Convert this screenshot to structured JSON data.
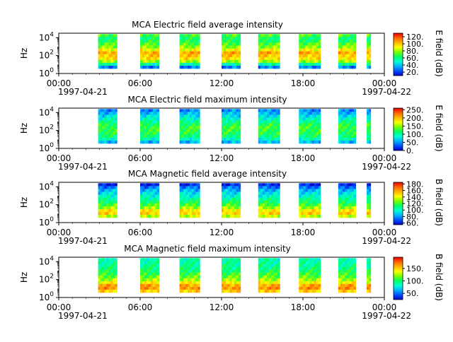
{
  "figure": {
    "background": "#ffffff",
    "colormap": [
      "#0000c8",
      "#0050ff",
      "#00b4ff",
      "#00ffd2",
      "#00ff64",
      "#78ff00",
      "#ffff00",
      "#ffb400",
      "#ff6400",
      "#e60000"
    ],
    "x_axis": {
      "ticks": [
        "00:00",
        "06:00",
        "12:00",
        "18:00",
        "00:00"
      ],
      "tick_hours": [
        0,
        6,
        12,
        18,
        24
      ],
      "start_date": "1997-04-21",
      "end_date": "1997-04-22"
    }
  },
  "chart_data": [
    {
      "type": "heatmap",
      "title": "MCA  Electric field average intensity",
      "ylabel": "Hz",
      "y_ticks": [
        "10^0",
        "10^2",
        "10^4"
      ],
      "colorbar_label": "E field (dB)",
      "colorbar_ticks": [
        20,
        40,
        60,
        80,
        100,
        120
      ],
      "colorbar_range": [
        10,
        130
      ],
      "x_range_hours": [
        0,
        24
      ],
      "y_range_log10": [
        0,
        4.5
      ],
      "segments_hours": [
        [
          2.9,
          4.3
        ],
        [
          6.0,
          7.4
        ],
        [
          8.9,
          10.4
        ],
        [
          12.0,
          13.4
        ],
        [
          14.7,
          16.3
        ],
        [
          17.7,
          19.3
        ],
        [
          20.6,
          21.9
        ],
        [
          22.7,
          23.0
        ]
      ],
      "profile_db": [
        30,
        55,
        80,
        95,
        100,
        105,
        90,
        78,
        72,
        65,
        62,
        70
      ]
    },
    {
      "type": "heatmap",
      "title": "MCA  Electric field maximum intensity",
      "ylabel": "Hz",
      "y_ticks": [
        "10^0",
        "10^2",
        "10^4"
      ],
      "colorbar_label": "E field (dB)",
      "colorbar_ticks": [
        0,
        50,
        100,
        150,
        200,
        250
      ],
      "colorbar_range": [
        0,
        260
      ],
      "x_range_hours": [
        0,
        24
      ],
      "y_range_log10": [
        0,
        4.5
      ],
      "segments_hours": [
        [
          2.9,
          4.3
        ],
        [
          6.0,
          7.4
        ],
        [
          8.9,
          10.4
        ],
        [
          12.0,
          13.4
        ],
        [
          14.7,
          16.3
        ],
        [
          17.7,
          19.3
        ],
        [
          20.6,
          21.9
        ],
        [
          22.7,
          23.0
        ]
      ],
      "profile_db": [
        60,
        90,
        110,
        120,
        125,
        128,
        120,
        105,
        90,
        75,
        60,
        45
      ]
    },
    {
      "type": "heatmap",
      "title": "MCA  Magnetic field average intensity",
      "ylabel": "Hz",
      "y_ticks": [
        "10^0",
        "10^2",
        "10^4"
      ],
      "colorbar_label": "B field (dB)",
      "colorbar_ticks": [
        60,
        80,
        100,
        120,
        140,
        160,
        180
      ],
      "colorbar_range": [
        55,
        185
      ],
      "x_range_hours": [
        0,
        24
      ],
      "y_range_log10": [
        0,
        4.5
      ],
      "segments_hours": [
        [
          2.9,
          4.3
        ],
        [
          6.0,
          7.4
        ],
        [
          8.9,
          10.4
        ],
        [
          12.0,
          13.4
        ],
        [
          14.7,
          16.3
        ],
        [
          17.7,
          19.3
        ],
        [
          20.6,
          21.9
        ],
        [
          22.7,
          23.0
        ]
      ],
      "profile_db": [
        135,
        150,
        145,
        130,
        120,
        112,
        105,
        98,
        92,
        85,
        75,
        62
      ]
    },
    {
      "type": "heatmap",
      "title": "MCA  Magnetic field maximum intensity",
      "ylabel": "Hz",
      "y_ticks": [
        "10^0",
        "10^2",
        "10^4"
      ],
      "colorbar_label": "B field (dB)",
      "colorbar_ticks": [
        50,
        100,
        150
      ],
      "colorbar_range": [
        25,
        195
      ],
      "x_range_hours": [
        0,
        24
      ],
      "y_range_log10": [
        0,
        4.5
      ],
      "segments_hours": [
        [
          2.9,
          4.3
        ],
        [
          6.0,
          7.4
        ],
        [
          8.9,
          10.4
        ],
        [
          12.0,
          13.4
        ],
        [
          14.7,
          16.3
        ],
        [
          17.7,
          19.3
        ],
        [
          20.6,
          21.9
        ],
        [
          22.7,
          23.0
        ]
      ],
      "profile_db": [
        150,
        165,
        160,
        140,
        125,
        115,
        108,
        100,
        96,
        92,
        90,
        88
      ]
    }
  ]
}
